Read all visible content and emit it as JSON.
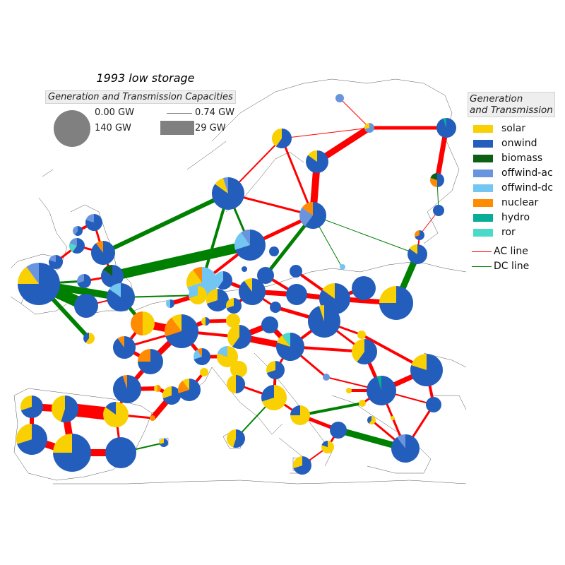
{
  "title": "1993 low storage",
  "size_legend": {
    "title": "Generation and Transmission Capacities",
    "gen_small": "0.00 GW",
    "gen_large": "140 GW",
    "line_small": "0.74 GW",
    "line_large": "29 GW"
  },
  "legend": {
    "title_line1": "Generation",
    "title_line2": "and Transmission",
    "carriers": [
      {
        "label": "solar",
        "color": "#f9d002"
      },
      {
        "label": "onwind",
        "color": "#235ebc"
      },
      {
        "label": "biomass",
        "color": "#0c6013"
      },
      {
        "label": "offwind-ac",
        "color": "#6895dd"
      },
      {
        "label": "offwind-dc",
        "color": "#74c6f2"
      },
      {
        "label": "nuclear",
        "color": "#ff8c00"
      },
      {
        "label": "hydro",
        "color": "#08ad97"
      },
      {
        "label": "ror",
        "color": "#4adbc8"
      }
    ],
    "lines": [
      {
        "label": "AC line",
        "color": "#ff0000"
      },
      {
        "label": "DC line",
        "color": "#008000"
      }
    ]
  },
  "colors": {
    "ac_line": "#ff0000",
    "dc_line": "#008000",
    "coastline": "#333333",
    "legend_gray": "#808080"
  }
}
